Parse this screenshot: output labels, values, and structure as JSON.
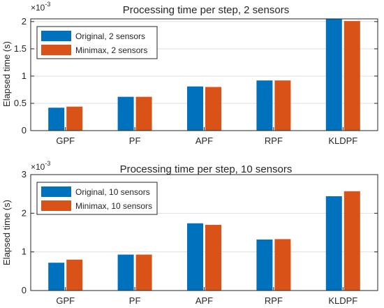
{
  "chart_data": [
    {
      "type": "bar",
      "title": "Processing time per step, 2 sensors",
      "xlabel": "",
      "ylabel": "Elapsed time (s)",
      "y_exponent_label": "×10",
      "y_exponent": "-3",
      "categories": [
        "GPF",
        "PF",
        "APF",
        "RPF",
        "KLDPF"
      ],
      "ylim": [
        0,
        2.05
      ],
      "yticks": [
        0,
        0.5,
        1,
        1.5,
        2
      ],
      "ytick_labels": [
        "0",
        "0.5",
        "1",
        "1.5",
        "2"
      ],
      "grid": true,
      "legend_position": "top-left",
      "series": [
        {
          "name": "Original, 2 sensors",
          "color": "#0072BD",
          "values": [
            0.42,
            0.62,
            0.81,
            0.92,
            2.05
          ]
        },
        {
          "name": "Minimax, 2 sensors",
          "color": "#D95319",
          "values": [
            0.44,
            0.62,
            0.8,
            0.92,
            2.01
          ]
        }
      ]
    },
    {
      "type": "bar",
      "title": "Processing time per step, 10 sensors",
      "xlabel": "",
      "ylabel": "Elapsed time (s)",
      "y_exponent_label": "×10",
      "y_exponent": "-3",
      "categories": [
        "GPF",
        "PF",
        "APF",
        "RPF",
        "KLDPF"
      ],
      "ylim": [
        0,
        3
      ],
      "yticks": [
        0,
        1,
        2,
        3
      ],
      "ytick_labels": [
        "0",
        "1",
        "2",
        "3"
      ],
      "grid": true,
      "legend_position": "top-left",
      "series": [
        {
          "name": "Original, 10 sensors",
          "color": "#0072BD",
          "values": [
            0.72,
            0.93,
            1.74,
            1.32,
            2.44
          ]
        },
        {
          "name": "Minimax, 10 sensors",
          "color": "#D95319",
          "values": [
            0.8,
            0.93,
            1.7,
            1.33,
            2.57
          ]
        }
      ]
    }
  ]
}
